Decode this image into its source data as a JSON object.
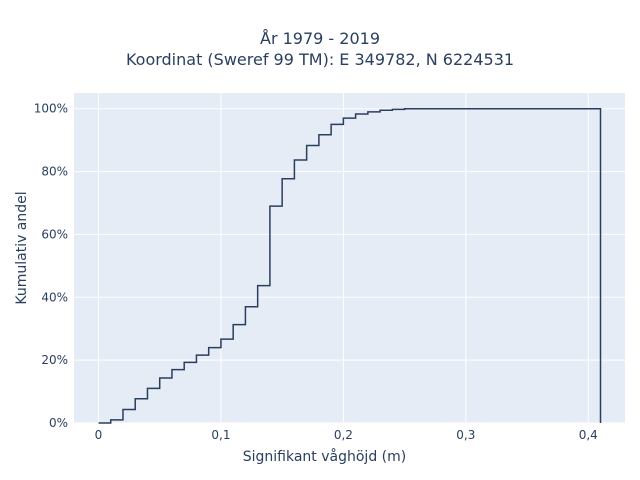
{
  "chart_data": {
    "type": "line",
    "line_shape": "step",
    "title_lines": [
      "År 1979 - 2019",
      "Koordinat (Sweref 99 TM): E 349782, N 6224531"
    ],
    "xlabel": "Signifikant våghöjd (m)",
    "ylabel": "Kumulativ andel",
    "xlim": [
      -0.02,
      0.43
    ],
    "ylim": [
      0,
      1.05
    ],
    "x_ticks": [
      0,
      0.1,
      0.2,
      0.3,
      0.4
    ],
    "x_tick_labels": [
      "0",
      "0,1",
      "0,2",
      "0,3",
      "0,4"
    ],
    "y_ticks": [
      0,
      0.2,
      0.4,
      0.6,
      0.8,
      1.0
    ],
    "y_tick_labels": [
      "0%",
      "20%",
      "40%",
      "60%",
      "80%",
      "100%"
    ],
    "grid": true,
    "legend": "none",
    "colors": {
      "background": "#e5ecf6",
      "line": "#2a3f5f",
      "grid": "#ffffff",
      "text": "#2a3f5f"
    },
    "series": [
      {
        "x": [
          0,
          0.01,
          0.02,
          0.03,
          0.04,
          0.05,
          0.06,
          0.07,
          0.08,
          0.09,
          0.1,
          0.11,
          0.12,
          0.13,
          0.14,
          0.15,
          0.16,
          0.17,
          0.18,
          0.19,
          0.2,
          0.21,
          0.22,
          0.23,
          0.24,
          0.25,
          0.41,
          0.41
        ],
        "y": [
          0.0,
          0.01,
          0.043,
          0.077,
          0.11,
          0.143,
          0.17,
          0.193,
          0.216,
          0.24,
          0.267,
          0.313,
          0.37,
          0.437,
          0.69,
          0.777,
          0.837,
          0.883,
          0.917,
          0.95,
          0.97,
          0.983,
          0.99,
          0.995,
          0.998,
          1.0,
          1.0,
          0.0
        ]
      }
    ]
  }
}
